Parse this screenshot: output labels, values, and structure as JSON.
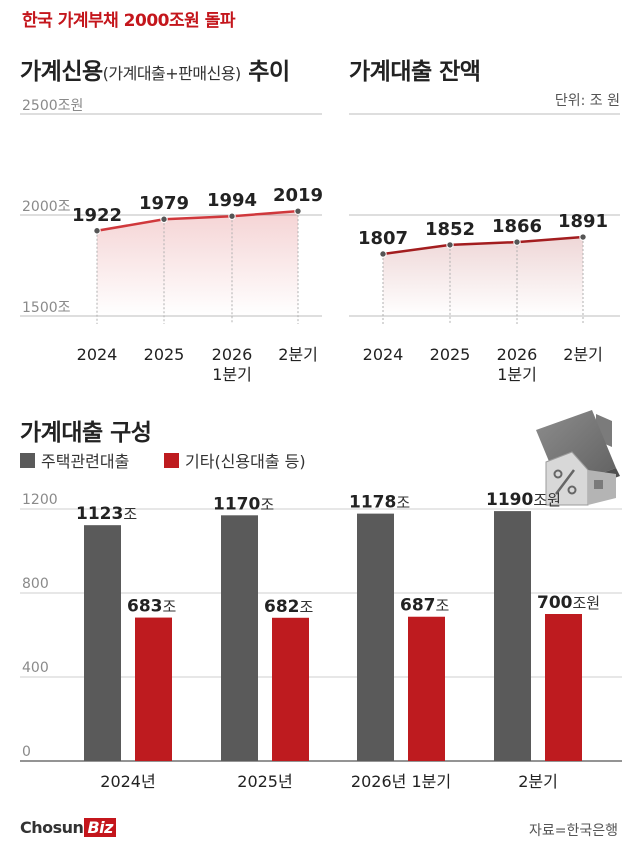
{
  "header": {
    "kicker": "한국 가계부채 2000조원 돌파",
    "title_left_main": "가계신용",
    "title_left_sub": "(가계대출+판매신용)",
    "title_left_suffix": " 추이",
    "title_right": "가계대출 잔액",
    "unit": "단위: 조 원"
  },
  "chart_data": [
    {
      "type": "area",
      "title": "가계신용(가계대출+판매신용) 추이",
      "categories": [
        "2024",
        "2025",
        "2026 1분기",
        "2분기"
      ],
      "tick_lines": [
        [
          "2024"
        ],
        [
          "2025"
        ],
        [
          "2026",
          "1분기"
        ],
        [
          "2분기"
        ]
      ],
      "values": [
        1922,
        1979,
        1994,
        2019
      ],
      "value_labels": [
        "1922",
        "1979",
        "1994",
        "2019"
      ],
      "yticks": [
        {
          "value": 2500,
          "label": "2500조원"
        },
        {
          "value": 2000,
          "label": "2000조"
        },
        {
          "value": 1500,
          "label": "1500조"
        }
      ],
      "ylim": [
        1500,
        2500
      ],
      "grid": true,
      "color": "#d0383c"
    },
    {
      "type": "area",
      "title": "가계대출 잔액",
      "categories": [
        "2024",
        "2025",
        "2026 1분기",
        "2분기"
      ],
      "tick_lines": [
        [
          "2024"
        ],
        [
          "2025"
        ],
        [
          "2026",
          "1분기"
        ],
        [
          "2분기"
        ]
      ],
      "values": [
        1807,
        1852,
        1866,
        1891
      ],
      "value_labels": [
        "1807",
        "1852",
        "1866",
        "1891"
      ],
      "ylim": [
        1500,
        2500
      ],
      "grid": true,
      "color": "#a31d1f"
    },
    {
      "type": "bar",
      "title": "가계대출 구성",
      "categories": [
        "2024년",
        "2025년",
        "2026년 1분기",
        "2분기"
      ],
      "series": [
        {
          "name": "주택관련대출",
          "color": "#5a5a5a",
          "values": [
            1123,
            1170,
            1178,
            1190
          ],
          "labels": [
            {
              "num": "1123",
              "unit": "조"
            },
            {
              "num": "1170",
              "unit": "조"
            },
            {
              "num": "1178",
              "unit": "조"
            },
            {
              "num": "1190",
              "unit": "조원"
            }
          ]
        },
        {
          "name": "기타(신용대출 등)",
          "color": "#be1b1f",
          "values": [
            683,
            682,
            687,
            700
          ],
          "labels": [
            {
              "num": "683",
              "unit": "조"
            },
            {
              "num": "682",
              "unit": "조"
            },
            {
              "num": "687",
              "unit": "조"
            },
            {
              "num": "700",
              "unit": "조원"
            }
          ]
        }
      ],
      "yticks": [
        1200,
        800,
        400,
        0
      ],
      "ylim": [
        0,
        1200
      ],
      "grid": true
    }
  ],
  "footer": {
    "brand_main": "Chosun",
    "brand_accent": "Biz",
    "source": "자료=한국은행"
  }
}
